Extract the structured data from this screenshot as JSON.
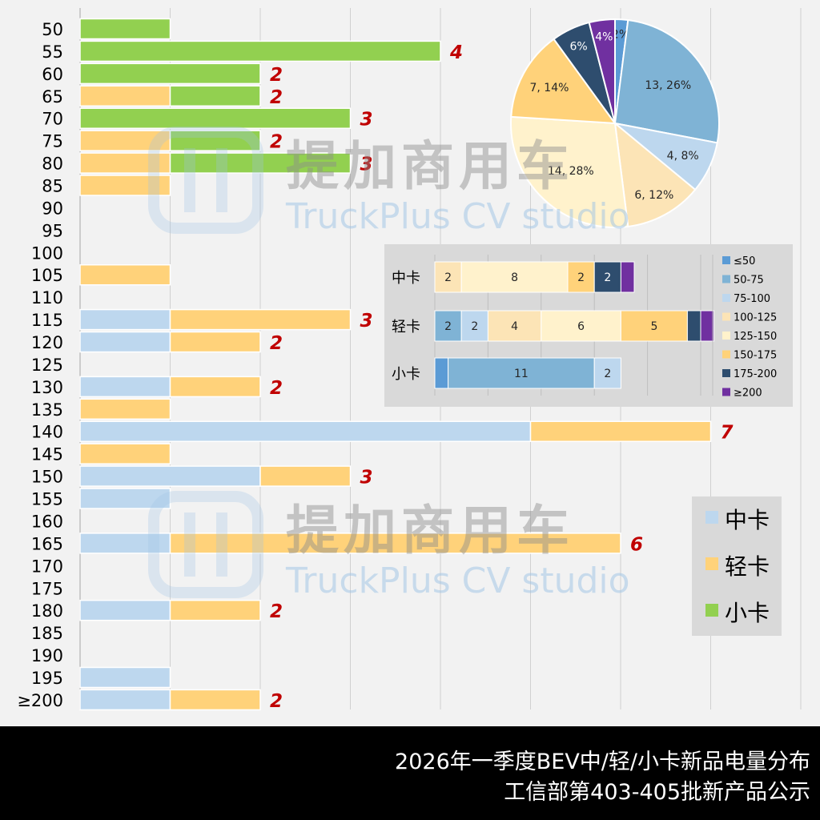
{
  "colors": {
    "zhongka": "#bdd7ee",
    "qingka": "#ffd27a",
    "xiaoka": "#92d050",
    "value_label": "#c00000",
    "watermark": "#9dc3e6"
  },
  "watermarks": [
    {
      "cn": "提加商用车",
      "en": "TruckPlus CV studio"
    },
    {
      "cn": "提加商用车",
      "en": "TruckPlus CV studio"
    }
  ],
  "footer": {
    "line1": "2026年一季度BEV中/轻/小卡新品电量分布",
    "line2": "工信部第403-405批新产品公示"
  },
  "chart_data": [
    {
      "type": "bar",
      "orientation": "horizontal",
      "stacked": true,
      "categories": [
        "50",
        "55",
        "60",
        "65",
        "70",
        "75",
        "80",
        "85",
        "90",
        "95",
        "100",
        "105",
        "110",
        "115",
        "120",
        "125",
        "130",
        "135",
        "140",
        "145",
        "150",
        "155",
        "160",
        "165",
        "170",
        "175",
        "180",
        "185",
        "190",
        "195",
        "≥200"
      ],
      "series": [
        {
          "name": "中卡",
          "values": [
            0,
            0,
            0,
            0,
            0,
            0,
            0,
            0,
            0,
            0,
            0,
            0,
            0,
            1,
            1,
            0,
            1,
            0,
            5,
            0,
            2,
            1,
            0,
            1,
            0,
            0,
            1,
            0,
            0,
            1,
            1
          ]
        },
        {
          "name": "轻卡",
          "values": [
            0,
            0,
            0,
            1,
            0,
            1,
            1,
            1,
            0,
            0,
            0,
            1,
            0,
            2,
            1,
            0,
            1,
            1,
            2,
            1,
            1,
            0,
            0,
            5,
            0,
            0,
            1,
            0,
            0,
            0,
            1
          ]
        },
        {
          "name": "小卡",
          "values": [
            1,
            4,
            2,
            1,
            3,
            1,
            2,
            0,
            0,
            0,
            0,
            0,
            0,
            0,
            0,
            0,
            0,
            0,
            0,
            0,
            0,
            0,
            0,
            0,
            0,
            0,
            0,
            0,
            0,
            0,
            0
          ]
        }
      ],
      "totals": [
        "",
        "4",
        "2",
        "2",
        "3",
        "2",
        "3",
        "",
        "",
        "",
        "",
        "",
        "",
        "3",
        "2",
        "",
        "2",
        "",
        "7",
        "",
        "3",
        "",
        "",
        "6",
        "",
        "",
        "2",
        "",
        "",
        "",
        "2"
      ],
      "xlim": [
        0,
        8
      ],
      "grid": true,
      "legend": {
        "position": "right",
        "entries": [
          "中卡",
          "轻卡",
          "小卡"
        ]
      }
    },
    {
      "type": "pie",
      "labels": [
        "≤50",
        "50-75",
        "75-100",
        "100-125",
        "125-150",
        "150-175",
        "175-200",
        "≥200"
      ],
      "values": [
        1,
        13,
        4,
        6,
        14,
        7,
        3,
        2
      ],
      "data_labels": [
        "2%",
        "13, 26%",
        "4, 8%",
        "6, 12%",
        "14, 28%",
        "7, 14%",
        "6%",
        "4%"
      ],
      "colors": [
        "#5b9bd5",
        "#7fb3d5",
        "#bdd7ee",
        "#fce4b6",
        "#fff2cc",
        "#ffd27a",
        "#2e4d6e",
        "#7030a0"
      ]
    },
    {
      "type": "bar",
      "orientation": "horizontal",
      "stacked": true,
      "categories": [
        "中卡",
        "轻卡",
        "小卡"
      ],
      "series": [
        {
          "name": "≤50",
          "values": [
            0,
            0,
            1
          ]
        },
        {
          "name": "50-75",
          "values": [
            0,
            2,
            11
          ]
        },
        {
          "name": "75-100",
          "values": [
            0,
            2,
            2
          ]
        },
        {
          "name": "100-125",
          "values": [
            2,
            4,
            0
          ]
        },
        {
          "name": "125-150",
          "values": [
            8,
            6,
            0
          ]
        },
        {
          "name": "150-175",
          "values": [
            2,
            5,
            0
          ]
        },
        {
          "name": "175-200",
          "values": [
            2,
            1,
            0
          ]
        },
        {
          "name": "≥200",
          "values": [
            1,
            1,
            0
          ]
        }
      ],
      "segment_labels": [
        [
          "",
          "",
          "",
          "2",
          "8",
          "2",
          "2",
          ""
        ],
        [
          "",
          "2",
          "2",
          "4",
          "6",
          "5",
          "",
          ""
        ],
        [
          "",
          "11",
          "2",
          "",
          "",
          "",
          "",
          ""
        ]
      ],
      "xlim": [
        0,
        21
      ],
      "grid": true,
      "legend": {
        "position": "right",
        "entries": [
          "≤50",
          "50-75",
          "75-100",
          "100-125",
          "125-150",
          "150-175",
          "175-200",
          "≥200"
        ]
      }
    }
  ]
}
